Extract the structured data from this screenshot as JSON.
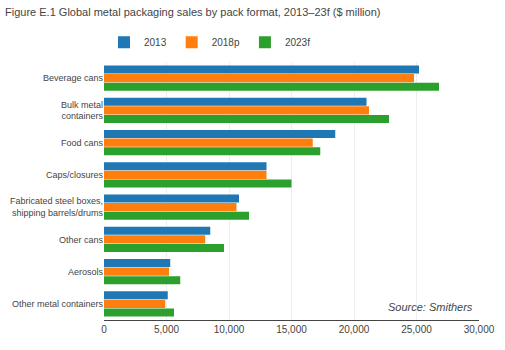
{
  "chart_data": {
    "type": "bar",
    "orientation": "horizontal",
    "title": "Figure E.1 Global metal packaging sales by pack format, 2013–23f ($ million)",
    "categories": [
      "Beverage cans",
      "Bulk metal\ncontainers",
      "Food cans",
      "Caps/closures",
      "Fabricated steel boxes,\nshipping barrels/drums",
      "Other cans",
      "Aerosols",
      "Other metal containers"
    ],
    "series": [
      {
        "name": "2013",
        "values": [
          25200,
          21000,
          18500,
          13000,
          10800,
          8500,
          5300,
          5100
        ]
      },
      {
        "name": "2018p",
        "values": [
          24800,
          21200,
          16700,
          13000,
          10600,
          8100,
          5200,
          4900
        ]
      },
      {
        "name": "2023f",
        "values": [
          26800,
          22800,
          17300,
          15000,
          11600,
          9600,
          6100,
          5600
        ]
      }
    ],
    "xlim": [
      0,
      30000
    ],
    "xticks": [
      0,
      {
        "value": 5000,
        "label": "5,000"
      },
      {
        "value": 10000,
        "label": "10,000"
      },
      {
        "value": 15000,
        "label": "15,000"
      },
      {
        "value": 20000,
        "label": "20,000"
      },
      {
        "value": 25000,
        "label": "25,000"
      },
      {
        "value": 30000,
        "label": "30,000"
      }
    ],
    "grid": true,
    "legend": "top",
    "annotations": [
      "Source: Smithers"
    ]
  }
}
